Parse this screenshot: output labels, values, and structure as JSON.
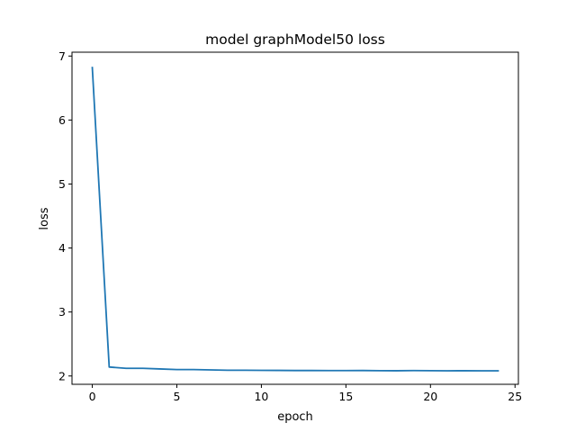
{
  "chart_data": {
    "type": "line",
    "title": "model graphModel50 loss",
    "xlabel": "epoch",
    "ylabel": "loss",
    "xlim": [
      -1.2,
      25.2
    ],
    "ylim": [
      1.87,
      7.06
    ],
    "xticks": [
      0,
      5,
      10,
      15,
      20,
      25
    ],
    "yticks": [
      2,
      3,
      4,
      5,
      6,
      7
    ],
    "grid": false,
    "legend": "none",
    "series": [
      {
        "color": "#1f77b4",
        "x": [
          0,
          1,
          2,
          3,
          4,
          5,
          6,
          7,
          8,
          9,
          10,
          11,
          12,
          13,
          14,
          15,
          16,
          17,
          18,
          19,
          20,
          21,
          22,
          23,
          24
        ],
        "y": [
          6.82,
          2.14,
          2.12,
          2.12,
          2.11,
          2.1,
          2.1,
          2.095,
          2.09,
          2.09,
          2.088,
          2.087,
          2.085,
          2.085,
          2.084,
          2.084,
          2.085,
          2.083,
          2.082,
          2.084,
          2.083,
          2.081,
          2.082,
          2.081,
          2.081
        ]
      }
    ]
  }
}
